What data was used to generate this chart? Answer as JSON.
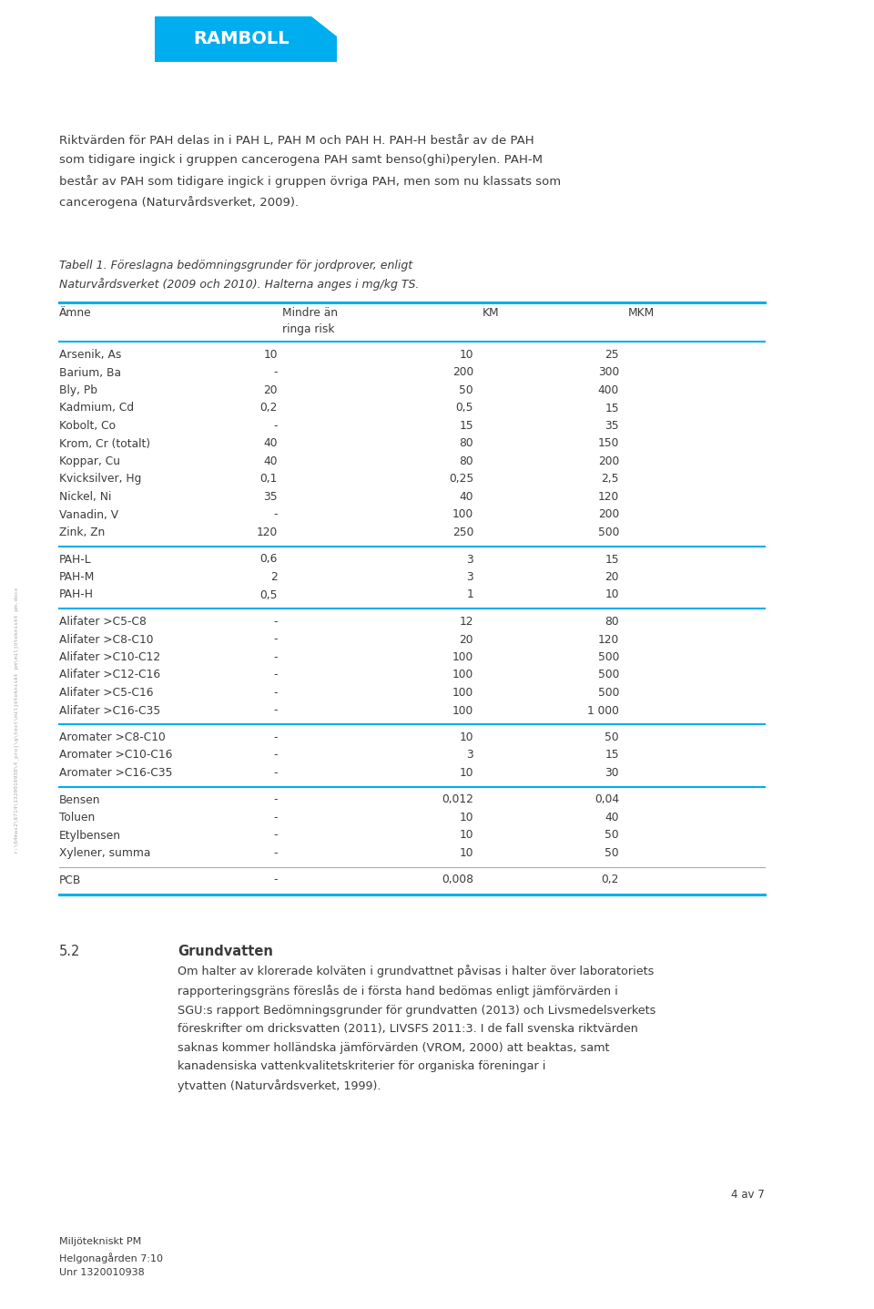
{
  "bg_color": "#ffffff",
  "cyan_color": "#00aeef",
  "text_color": "#3c3c3c",
  "logo_text": "RAMBOLL",
  "body_text_1": "Riktvärden för PAH delas in i PAH L, PAH M och PAH H. PAH-H består av de PAH\nsom tidigare ingick i gruppen cancerogena PAH samt benso(ghi)perylen. PAH-M\nbestår av PAH som tidigare ingick i gruppen övriga PAH, men som nu klassats som\ncancerogena (Naturvårdsverket, 2009).",
  "caption_italic": "Tabell 1. Föreslagna bedömningsgrunder för jordprover, enligt\nNaturvårdsverket (2009 och 2010). Halterna anges i mg/kg TS.",
  "col_headers": [
    "Ämne",
    "Mindre än\nringa risk",
    "KM",
    "MKM"
  ],
  "table_rows": [
    [
      "Arsenik, As",
      "10",
      "10",
      "25"
    ],
    [
      "Barium, Ba",
      "-",
      "200",
      "300"
    ],
    [
      "Bly, Pb",
      "20",
      "50",
      "400"
    ],
    [
      "Kadmium, Cd",
      "0,2",
      "0,5",
      "15"
    ],
    [
      "Kobolt, Co",
      "-",
      "15",
      "35"
    ],
    [
      "Krom, Cr (totalt)",
      "40",
      "80",
      "150"
    ],
    [
      "Koppar, Cu",
      "40",
      "80",
      "200"
    ],
    [
      "Kvicksilver, Hg",
      "0,1",
      "0,25",
      "2,5"
    ],
    [
      "Nickel, Ni",
      "35",
      "40",
      "120"
    ],
    [
      "Vanadin, V",
      "-",
      "100",
      "200"
    ],
    [
      "Zink, Zn",
      "120",
      "250",
      "500"
    ]
  ],
  "pah_rows": [
    [
      "PAH-L",
      "0,6",
      "3",
      "15"
    ],
    [
      "PAH-M",
      "2",
      "3",
      "20"
    ],
    [
      "PAH-H",
      "0,5",
      "1",
      "10"
    ]
  ],
  "alifater_rows": [
    [
      "Alifater >C5-C8",
      "-",
      "12",
      "80"
    ],
    [
      "Alifater >C8-C10",
      "-",
      "20",
      "120"
    ],
    [
      "Alifater >C10-C12",
      "-",
      "100",
      "500"
    ],
    [
      "Alifater >C12-C16",
      "-",
      "100",
      "500"
    ],
    [
      "Alifater >C5-C16",
      "-",
      "100",
      "500"
    ],
    [
      "Alifater >C16-C35",
      "-",
      "100",
      "1 000"
    ]
  ],
  "aromater_rows": [
    [
      "Aromater >C8-C10",
      "-",
      "10",
      "50"
    ],
    [
      "Aromater >C10-C16",
      "-",
      "3",
      "15"
    ],
    [
      "Aromater >C16-C35",
      "-",
      "10",
      "30"
    ]
  ],
  "btex_rows": [
    [
      "Bensen",
      "-",
      "0,012",
      "0,04"
    ],
    [
      "Toluen",
      "-",
      "10",
      "40"
    ],
    [
      "Etylbensen",
      "-",
      "10",
      "50"
    ],
    [
      "Xylener, summa",
      "-",
      "10",
      "50"
    ]
  ],
  "pcb_rows": [
    [
      "PCB",
      "-",
      "0,008",
      "0,2"
    ]
  ],
  "section_52_num": "5.2",
  "section_52_title": "Grundvatten",
  "section_52_body": "Om halter av klorerade kolväten i grundvattnet påvisas i halter över laboratoriets\nrapporteringsgräns föreslås de i första hand bedömas enligt jämförvärden i\nSGU:s rapport Bedömningsgrunder för grundvatten (2013) och Livsmedelsverkets\nföreskrifter om dricksvatten (2011), LIVSFS 2011:3. I de fall svenska riktvärden\nsaknas kommer holländska jämförvärden (VROM, 2000) att beaktas, samt\nkanadensiska vattenkvalitetskriterier för organiska föreningar i\nytvatten (Naturvårdsverket, 1999).",
  "footer_page": "4 av 7",
  "footer_line1": "Miljötekniskt PM",
  "footer_line2": "Helgonagården 7:10",
  "footer_line3": "Unr 1320010938",
  "sidebar_text": "r:\\64mas2\\6714\\1320010938\\4_proj\\g\\text\\miljötekniskt pm\\miljötekniskt pm.docx"
}
